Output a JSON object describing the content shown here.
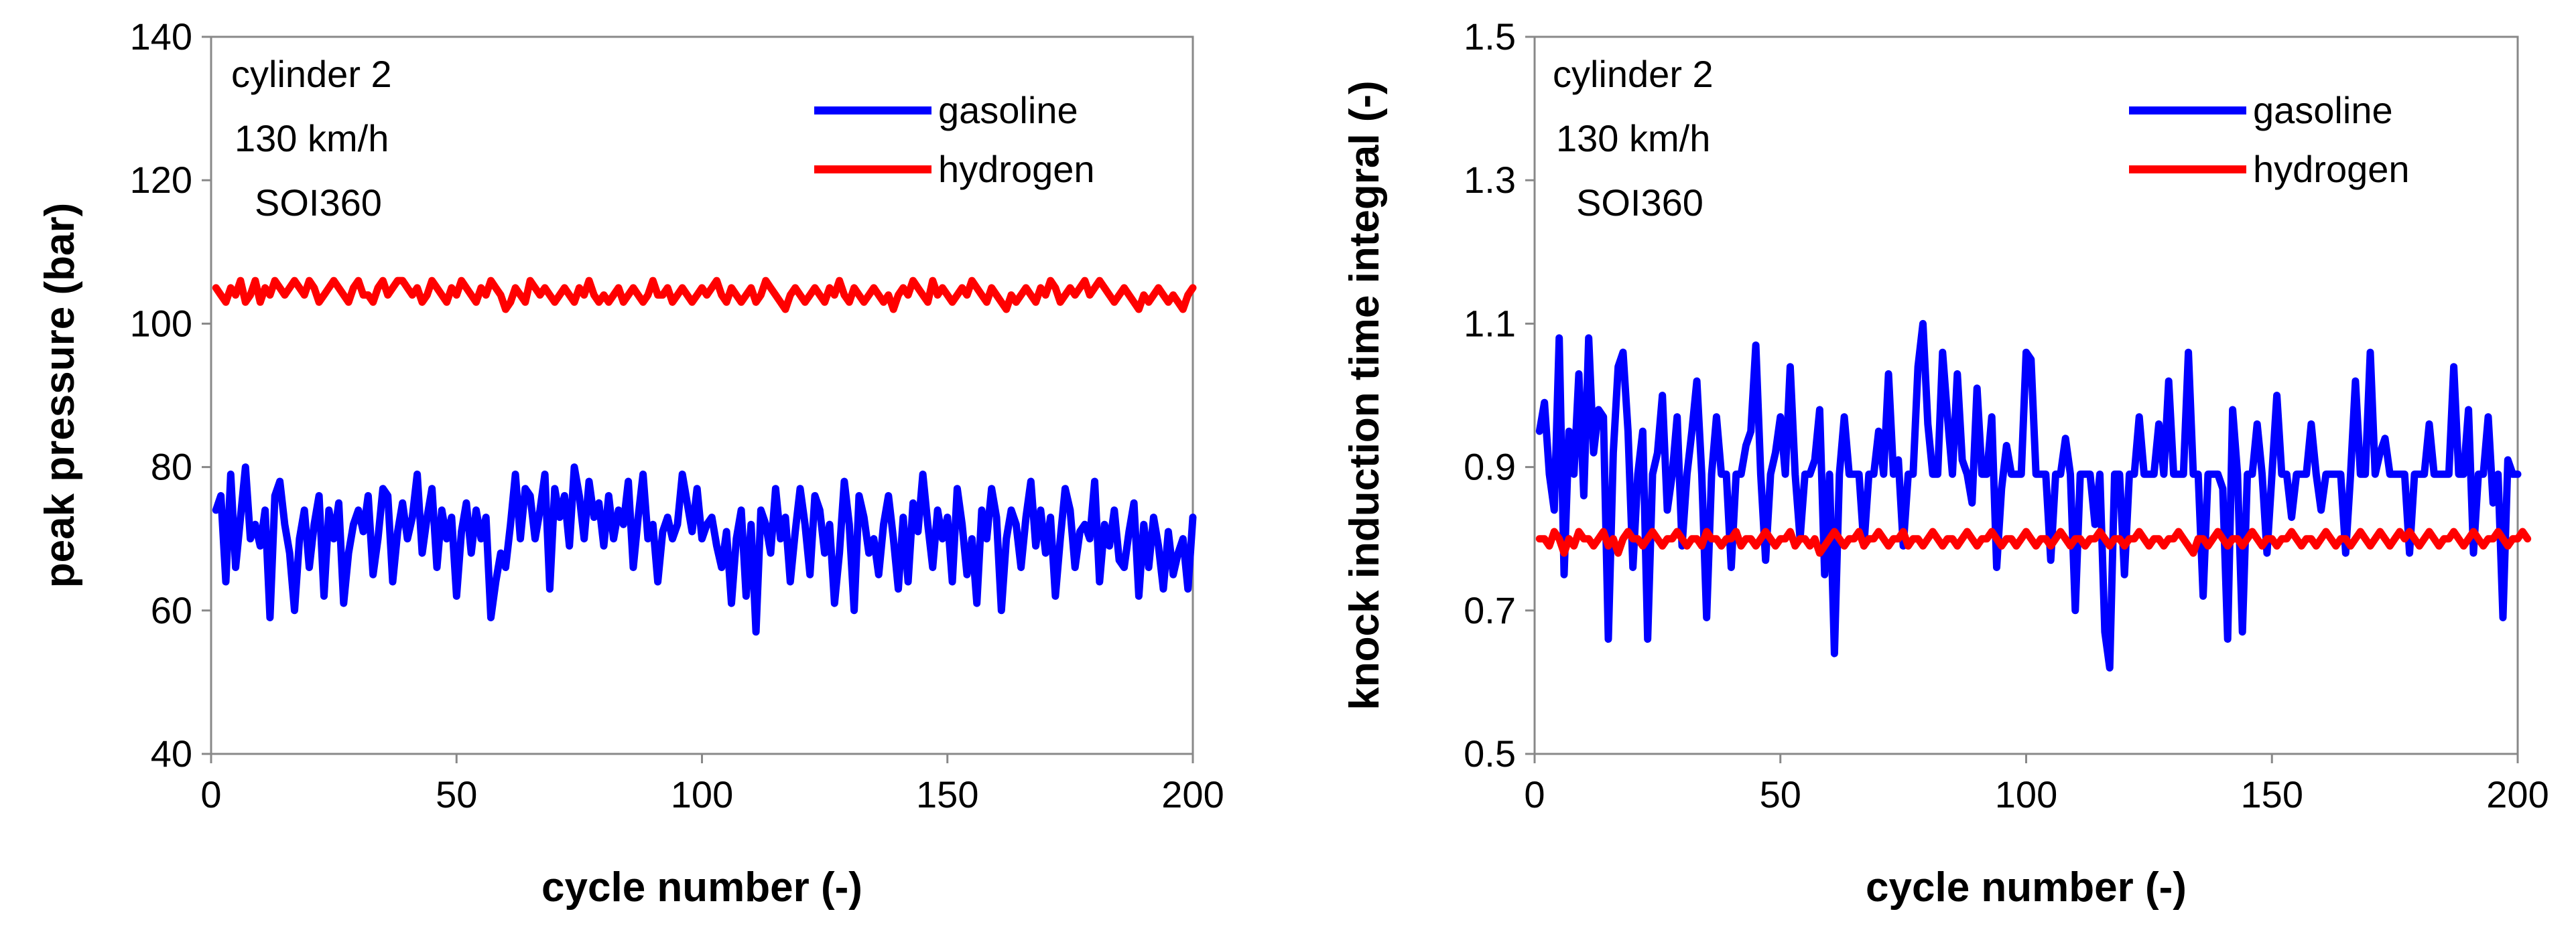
{
  "chart_data": [
    {
      "type": "line",
      "id": "left",
      "xlabel": "cycle number (-)",
      "ylabel": "peak pressure (bar)",
      "xlim": [
        0,
        200
      ],
      "ylim": [
        40,
        140
      ],
      "xticks": [
        0,
        50,
        100,
        150,
        200
      ],
      "yticks": [
        40,
        60,
        80,
        100,
        120,
        140
      ],
      "xtick_labels": [
        "0",
        "50",
        "100",
        "150",
        "200"
      ],
      "ytick_labels": [
        "40",
        "60",
        "80",
        "100",
        "120",
        "140"
      ],
      "annotation": [
        "cylinder 2",
        "130 km/h",
        "SOI360"
      ],
      "legend_position": "top-right",
      "series": [
        {
          "name": "gasoline",
          "color": "#0000ff",
          "values": [
            74,
            76,
            64,
            79,
            66,
            73,
            80,
            70,
            72,
            69,
            74,
            59,
            76,
            78,
            72,
            68,
            60,
            70,
            74,
            66,
            72,
            76,
            62,
            74,
            70,
            75,
            61,
            68,
            72,
            74,
            71,
            76,
            65,
            70,
            77,
            76,
            64,
            71,
            75,
            70,
            73,
            79,
            68,
            73,
            77,
            66,
            74,
            70,
            73,
            62,
            71,
            75,
            68,
            74,
            70,
            73,
            59,
            64,
            68,
            66,
            72,
            79,
            70,
            77,
            76,
            70,
            74,
            79,
            63,
            77,
            73,
            76,
            69,
            80,
            76,
            70,
            78,
            73,
            75,
            69,
            76,
            70,
            74,
            72,
            78,
            66,
            73,
            79,
            70,
            72,
            64,
            71,
            73,
            70,
            72,
            79,
            75,
            71,
            77,
            70,
            72,
            73,
            69,
            66,
            71,
            61,
            70,
            74,
            62,
            72,
            57,
            74,
            72,
            68,
            77,
            70,
            73,
            64,
            71,
            77,
            72,
            65,
            76,
            74,
            68,
            72,
            61,
            68,
            78,
            72,
            60,
            76,
            73,
            68,
            70,
            65,
            72,
            76,
            70,
            63,
            73,
            64,
            75,
            71,
            79,
            72,
            66,
            74,
            70,
            73,
            64,
            77,
            72,
            65,
            70,
            61,
            74,
            70,
            77,
            73,
            60,
            70,
            74,
            72,
            66,
            73,
            78,
            69,
            74,
            68,
            73,
            62,
            70,
            77,
            74,
            66,
            71,
            72,
            70,
            78,
            64,
            72,
            69,
            74,
            67,
            66,
            71,
            75,
            62,
            72,
            66,
            73,
            69,
            63,
            71,
            65,
            68,
            70,
            63,
            73
          ],
          "x_start": 1
        },
        {
          "name": "hydrogen",
          "color": "#ff0000",
          "values": [
            105,
            104,
            103,
            105,
            104,
            106,
            103,
            104,
            106,
            103,
            105,
            104,
            106,
            105,
            104,
            105,
            106,
            105,
            104,
            106,
            105,
            103,
            104,
            105,
            106,
            105,
            104,
            103,
            105,
            106,
            104,
            104,
            103,
            105,
            106,
            104,
            105,
            106,
            106,
            105,
            104,
            105,
            103,
            104,
            106,
            105,
            104,
            103,
            105,
            104,
            106,
            105,
            104,
            103,
            105,
            104,
            106,
            105,
            104,
            102,
            103,
            105,
            104,
            103,
            106,
            105,
            104,
            105,
            104,
            103,
            104,
            105,
            104,
            103,
            105,
            104,
            106,
            104,
            103,
            104,
            103,
            104,
            105,
            103,
            104,
            105,
            104,
            103,
            104,
            106,
            104,
            104,
            105,
            103,
            104,
            105,
            104,
            103,
            104,
            105,
            104,
            105,
            106,
            104,
            103,
            105,
            104,
            103,
            104,
            105,
            103,
            104,
            106,
            105,
            104,
            103,
            102,
            104,
            105,
            104,
            103,
            104,
            105,
            104,
            103,
            105,
            104,
            106,
            104,
            103,
            105,
            104,
            103,
            104,
            105,
            104,
            103,
            104,
            102,
            104,
            105,
            104,
            106,
            105,
            104,
            103,
            106,
            104,
            105,
            104,
            103,
            104,
            105,
            104,
            106,
            105,
            104,
            103,
            105,
            104,
            103,
            102,
            104,
            103,
            104,
            105,
            104,
            103,
            105,
            104,
            106,
            105,
            103,
            104,
            105,
            104,
            105,
            106,
            104,
            105,
            106,
            105,
            104,
            103,
            104,
            105,
            104,
            103,
            102,
            104,
            103,
            104,
            105,
            104,
            103,
            104,
            103,
            102,
            104,
            105
          ],
          "x_start": 1
        }
      ]
    },
    {
      "type": "line",
      "id": "right",
      "xlabel": "cycle number (-)",
      "ylabel": "knock induction time integral (-)",
      "xlim": [
        0,
        200
      ],
      "ylim": [
        0.5,
        1.5
      ],
      "xticks": [
        0,
        50,
        100,
        150,
        200
      ],
      "yticks": [
        0.5,
        0.7,
        0.9,
        1.1,
        1.3,
        1.5
      ],
      "xtick_labels": [
        "0",
        "50",
        "100",
        "150",
        "200"
      ],
      "ytick_labels": [
        "0.5",
        "0.7",
        "0.9",
        "1.1",
        "1.3",
        "1.5"
      ],
      "annotation": [
        "cylinder 2",
        "130 km/h",
        "SOI360"
      ],
      "legend_position": "top-right",
      "series": [
        {
          "name": "gasoline",
          "color": "#0000ff",
          "values": [
            0.95,
            0.99,
            0.89,
            0.84,
            1.08,
            0.75,
            0.95,
            0.89,
            1.03,
            0.86,
            1.08,
            0.92,
            0.98,
            0.97,
            0.66,
            0.92,
            1.04,
            1.06,
            0.95,
            0.76,
            0.89,
            0.95,
            0.66,
            0.89,
            0.92,
            1.0,
            0.84,
            0.89,
            0.97,
            0.79,
            0.89,
            0.95,
            1.02,
            0.89,
            0.69,
            0.89,
            0.97,
            0.89,
            0.89,
            0.76,
            0.89,
            0.89,
            0.93,
            0.95,
            1.07,
            0.89,
            0.77,
            0.89,
            0.92,
            0.97,
            0.89,
            1.04,
            0.89,
            0.8,
            0.89,
            0.89,
            0.91,
            0.98,
            0.75,
            0.89,
            0.64,
            0.89,
            0.97,
            0.89,
            0.89,
            0.89,
            0.79,
            0.89,
            0.89,
            0.95,
            0.89,
            1.03,
            0.89,
            0.91,
            0.79,
            0.89,
            0.89,
            1.04,
            1.1,
            0.96,
            0.89,
            0.89,
            1.06,
            0.97,
            0.89,
            1.03,
            0.91,
            0.89,
            0.85,
            1.01,
            0.89,
            0.89,
            0.97,
            0.76,
            0.87,
            0.93,
            0.89,
            0.89,
            0.89,
            1.06,
            1.05,
            0.89,
            0.89,
            0.89,
            0.77,
            0.89,
            0.89,
            0.94,
            0.89,
            0.7,
            0.89,
            0.89,
            0.89,
            0.82,
            0.89,
            0.67,
            0.62,
            0.89,
            0.89,
            0.75,
            0.89,
            0.89,
            0.97,
            0.89,
            0.89,
            0.89,
            0.96,
            0.89,
            1.02,
            0.89,
            0.89,
            0.89,
            1.06,
            0.89,
            0.89,
            0.72,
            0.89,
            0.89,
            0.89,
            0.87,
            0.66,
            0.98,
            0.89,
            0.67,
            0.89,
            0.89,
            0.96,
            0.89,
            0.78,
            0.89,
            1.0,
            0.89,
            0.89,
            0.83,
            0.89,
            0.89,
            0.89,
            0.96,
            0.89,
            0.84,
            0.89,
            0.89,
            0.89,
            0.89,
            0.78,
            0.89,
            1.02,
            0.89,
            0.89,
            1.06,
            0.89,
            0.92,
            0.94,
            0.89,
            0.89,
            0.89,
            0.89,
            0.78,
            0.89,
            0.89,
            0.89,
            0.96,
            0.89,
            0.89,
            0.89,
            0.89,
            1.04,
            0.89,
            0.89,
            0.98,
            0.78,
            0.89,
            0.89,
            0.97,
            0.85,
            0.89,
            0.69,
            0.91,
            0.89,
            0.89
          ],
          "x_start": 1
        },
        {
          "name": "hydrogen",
          "color": "#ff0000",
          "values": [
            0.8,
            0.8,
            0.79,
            0.81,
            0.8,
            0.78,
            0.8,
            0.79,
            0.81,
            0.8,
            0.8,
            0.79,
            0.8,
            0.81,
            0.79,
            0.8,
            0.78,
            0.8,
            0.81,
            0.8,
            0.8,
            0.79,
            0.8,
            0.81,
            0.8,
            0.79,
            0.8,
            0.8,
            0.81,
            0.8,
            0.79,
            0.8,
            0.8,
            0.79,
            0.81,
            0.8,
            0.8,
            0.79,
            0.8,
            0.8,
            0.81,
            0.79,
            0.8,
            0.8,
            0.79,
            0.8,
            0.81,
            0.8,
            0.79,
            0.8,
            0.8,
            0.81,
            0.79,
            0.8,
            0.8,
            0.79,
            0.8,
            0.78,
            0.79,
            0.8,
            0.81,
            0.8,
            0.79,
            0.8,
            0.8,
            0.81,
            0.79,
            0.8,
            0.8,
            0.81,
            0.8,
            0.79,
            0.8,
            0.8,
            0.81,
            0.79,
            0.8,
            0.8,
            0.79,
            0.8,
            0.81,
            0.8,
            0.79,
            0.8,
            0.8,
            0.79,
            0.8,
            0.81,
            0.8,
            0.79,
            0.8,
            0.8,
            0.81,
            0.8,
            0.79,
            0.8,
            0.8,
            0.79,
            0.8,
            0.81,
            0.8,
            0.79,
            0.8,
            0.8,
            0.79,
            0.8,
            0.81,
            0.8,
            0.79,
            0.8,
            0.8,
            0.79,
            0.8,
            0.8,
            0.81,
            0.8,
            0.79,
            0.8,
            0.8,
            0.79,
            0.8,
            0.8,
            0.81,
            0.8,
            0.79,
            0.8,
            0.8,
            0.79,
            0.8,
            0.8,
            0.81,
            0.8,
            0.79,
            0.78,
            0.8,
            0.8,
            0.79,
            0.8,
            0.81,
            0.8,
            0.79,
            0.8,
            0.8,
            0.79,
            0.8,
            0.81,
            0.8,
            0.79,
            0.8,
            0.8,
            0.79,
            0.8,
            0.8,
            0.81,
            0.8,
            0.79,
            0.8,
            0.8,
            0.79,
            0.8,
            0.81,
            0.8,
            0.79,
            0.8,
            0.8,
            0.79,
            0.8,
            0.81,
            0.8,
            0.79,
            0.8,
            0.81,
            0.8,
            0.79,
            0.8,
            0.81,
            0.8,
            0.81,
            0.8,
            0.79,
            0.8,
            0.81,
            0.8,
            0.79,
            0.8,
            0.8,
            0.81,
            0.8,
            0.79,
            0.8,
            0.81,
            0.8,
            0.79,
            0.8,
            0.8,
            0.81,
            0.8,
            0.79,
            0.8,
            0.8,
            0.81,
            0.8
          ],
          "x_start": 1
        }
      ]
    }
  ]
}
